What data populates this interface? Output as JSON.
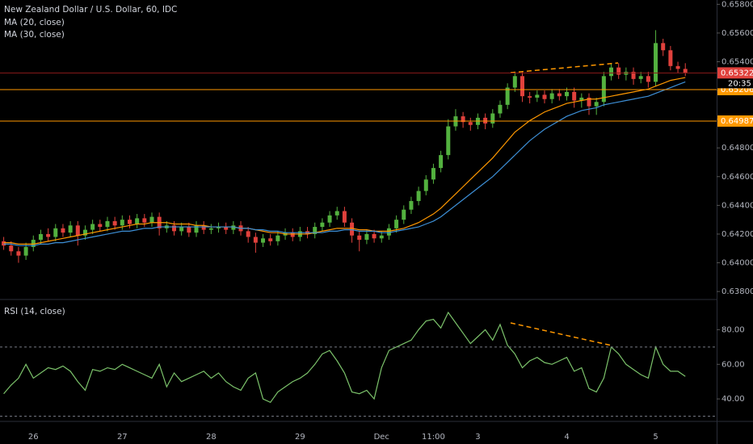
{
  "chart_data": [
    {
      "type": "candlestick",
      "title": "New Zealand Dollar / U.S. Dollar, 60, IDC",
      "categories": [
        null,
        null,
        null,
        null,
        "26",
        null,
        null,
        null,
        null,
        null,
        null,
        null,
        null,
        null,
        null,
        null,
        "27",
        null,
        null,
        null,
        null,
        null,
        null,
        null,
        null,
        null,
        null,
        null,
        "28",
        null,
        null,
        null,
        null,
        null,
        null,
        null,
        null,
        null,
        null,
        null,
        "29",
        null,
        null,
        null,
        null,
        null,
        null,
        null,
        null,
        null,
        null,
        "Dec",
        null,
        null,
        null,
        null,
        null,
        null,
        "11:00",
        null,
        null,
        null,
        null,
        null,
        "3",
        null,
        null,
        null,
        null,
        null,
        null,
        null,
        null,
        null,
        null,
        null,
        "4",
        null,
        null,
        null,
        null,
        null,
        null,
        null,
        null,
        null,
        null,
        null,
        "5",
        null,
        null,
        null,
        null
      ],
      "open": [
        0.6415,
        0.6412,
        0.6408,
        0.6405,
        0.6411,
        0.6416,
        0.642,
        0.6418,
        0.6424,
        0.6421,
        0.6426,
        0.6419,
        0.6423,
        0.6427,
        0.6425,
        0.6429,
        0.6426,
        0.643,
        0.6427,
        0.6431,
        0.6428,
        0.6432,
        0.6424,
        0.6426,
        0.6422,
        0.6425,
        0.6421,
        0.6426,
        0.6423,
        0.6424,
        0.6425,
        0.6423,
        0.6426,
        0.6422,
        0.6418,
        0.6414,
        0.6417,
        0.6415,
        0.6419,
        0.6421,
        0.6418,
        0.6422,
        0.642,
        0.6425,
        0.6428,
        0.6433,
        0.6436,
        0.6428,
        0.6419,
        0.6416,
        0.642,
        0.6417,
        0.6419,
        0.6424,
        0.643,
        0.6437,
        0.6443,
        0.645,
        0.6458,
        0.6466,
        0.6475,
        0.6495,
        0.6502,
        0.6498,
        0.6496,
        0.6501,
        0.6497,
        0.6504,
        0.651,
        0.6522,
        0.653,
        0.6516,
        0.6515,
        0.6517,
        0.6514,
        0.6518,
        0.6516,
        0.6519,
        0.6513,
        0.6515,
        0.6509,
        0.6512,
        0.653,
        0.6536,
        0.6531,
        0.6533,
        0.6528,
        0.653,
        0.6526,
        0.6553,
        0.6548,
        0.6537,
        0.6535
      ],
      "high": [
        0.6418,
        0.6415,
        0.6411,
        0.6414,
        0.6419,
        0.6423,
        0.6424,
        0.6427,
        0.6427,
        0.6429,
        0.6429,
        0.6426,
        0.643,
        0.643,
        0.6432,
        0.6432,
        0.6433,
        0.6433,
        0.6434,
        0.6434,
        0.6435,
        0.6435,
        0.6429,
        0.6429,
        0.6428,
        0.6428,
        0.6429,
        0.6429,
        0.6427,
        0.6428,
        0.6428,
        0.6429,
        0.6429,
        0.6425,
        0.6421,
        0.642,
        0.642,
        0.6422,
        0.6424,
        0.6424,
        0.6425,
        0.6425,
        0.6428,
        0.6431,
        0.6436,
        0.6439,
        0.6439,
        0.6431,
        0.6422,
        0.6423,
        0.6423,
        0.6422,
        0.6427,
        0.6433,
        0.644,
        0.6446,
        0.6453,
        0.6461,
        0.6469,
        0.6478,
        0.65,
        0.6507,
        0.6505,
        0.6501,
        0.6504,
        0.6504,
        0.6507,
        0.6513,
        0.6525,
        0.6533,
        0.6533,
        0.6519,
        0.652,
        0.652,
        0.6521,
        0.6521,
        0.6522,
        0.6522,
        0.6518,
        0.6518,
        0.6515,
        0.6533,
        0.6539,
        0.6539,
        0.6536,
        0.6536,
        0.6533,
        0.6533,
        0.6562,
        0.6556,
        0.6551,
        0.654,
        0.6539
      ],
      "low": [
        0.6409,
        0.6405,
        0.64,
        0.6402,
        0.6408,
        0.6413,
        0.6415,
        0.6415,
        0.6418,
        0.6418,
        0.6412,
        0.6416,
        0.642,
        0.6422,
        0.6422,
        0.6423,
        0.6423,
        0.6424,
        0.6424,
        0.6425,
        0.6425,
        0.6419,
        0.6421,
        0.6419,
        0.6419,
        0.6418,
        0.6418,
        0.642,
        0.642,
        0.6421,
        0.642,
        0.642,
        0.6419,
        0.6414,
        0.6407,
        0.6411,
        0.6412,
        0.6412,
        0.6416,
        0.6415,
        0.6415,
        0.6417,
        0.6417,
        0.6422,
        0.6425,
        0.643,
        0.6425,
        0.6414,
        0.6408,
        0.6413,
        0.6414,
        0.6414,
        0.6416,
        0.6421,
        0.6427,
        0.6434,
        0.644,
        0.6447,
        0.6455,
        0.6463,
        0.6472,
        0.6492,
        0.6494,
        0.6492,
        0.6493,
        0.6493,
        0.6494,
        0.6501,
        0.6507,
        0.6519,
        0.6512,
        0.6511,
        0.6512,
        0.6511,
        0.6511,
        0.6513,
        0.6513,
        0.6508,
        0.6508,
        0.6503,
        0.6503,
        0.6509,
        0.6527,
        0.6528,
        0.6527,
        0.6524,
        0.6525,
        0.6522,
        0.6523,
        0.6544,
        0.6534,
        0.6532,
        0.653
      ],
      "close": [
        0.6412,
        0.6408,
        0.6405,
        0.6411,
        0.6416,
        0.642,
        0.6418,
        0.6424,
        0.6421,
        0.6426,
        0.6419,
        0.6423,
        0.6427,
        0.6425,
        0.6429,
        0.6426,
        0.643,
        0.6427,
        0.6431,
        0.6428,
        0.6432,
        0.6424,
        0.6426,
        0.6422,
        0.6425,
        0.6421,
        0.6426,
        0.6423,
        0.6424,
        0.6425,
        0.6423,
        0.6426,
        0.6422,
        0.6418,
        0.6414,
        0.6417,
        0.6415,
        0.6419,
        0.6421,
        0.6418,
        0.6422,
        0.642,
        0.6425,
        0.6428,
        0.6433,
        0.6436,
        0.6428,
        0.6419,
        0.6416,
        0.642,
        0.6417,
        0.6419,
        0.6424,
        0.643,
        0.6437,
        0.6443,
        0.645,
        0.6458,
        0.6466,
        0.6475,
        0.6495,
        0.6502,
        0.6498,
        0.6496,
        0.6501,
        0.6497,
        0.6504,
        0.651,
        0.6522,
        0.653,
        0.6516,
        0.6515,
        0.6517,
        0.6514,
        0.6518,
        0.6516,
        0.6519,
        0.6513,
        0.6515,
        0.6509,
        0.6512,
        0.653,
        0.6536,
        0.6531,
        0.6533,
        0.6528,
        0.653,
        0.6526,
        0.6553,
        0.6548,
        0.6537,
        0.6535,
        0.65322
      ],
      "up_color": "#53b13f",
      "down_color": "#e0413c",
      "series": [
        {
          "name": "MA (20, close)",
          "color": "#ff9800",
          "values": [
            0.6414,
            0.6414,
            0.6413,
            0.6413,
            0.6413,
            0.6414,
            0.6415,
            0.6416,
            0.6417,
            0.6418,
            0.6419,
            0.642,
            0.6421,
            0.6422,
            0.6423,
            0.6424,
            0.6425,
            0.6426,
            0.6427,
            0.6427,
            0.6428,
            0.6428,
            0.6428,
            0.6427,
            0.6427,
            0.6427,
            0.6426,
            0.6426,
            0.6425,
            0.6425,
            0.6425,
            0.6425,
            0.6424,
            0.6424,
            0.6423,
            0.6422,
            0.6421,
            0.6421,
            0.642,
            0.642,
            0.642,
            0.642,
            0.6421,
            0.6422,
            0.6423,
            0.6424,
            0.6424,
            0.6424,
            0.6423,
            0.6423,
            0.6422,
            0.6422,
            0.6422,
            0.6423,
            0.6424,
            0.6426,
            0.6428,
            0.6431,
            0.6434,
            0.6438,
            0.6443,
            0.6448,
            0.6453,
            0.6458,
            0.6463,
            0.6468,
            0.6473,
            0.6479,
            0.6485,
            0.6491,
            0.6495,
            0.6499,
            0.6502,
            0.6505,
            0.6507,
            0.6509,
            0.6511,
            0.6512,
            0.6513,
            0.6514,
            0.6514,
            0.6515,
            0.6516,
            0.6517,
            0.6518,
            0.6519,
            0.652,
            0.6521,
            0.6523,
            0.6525,
            0.6527,
            0.6528,
            0.6529
          ]
        },
        {
          "name": "MA (30, close)",
          "color": "#3d8fd6",
          "values": [
            0.6413,
            0.6413,
            0.6412,
            0.6412,
            0.6412,
            0.6413,
            0.6413,
            0.6414,
            0.6414,
            0.6415,
            0.6416,
            0.6417,
            0.6418,
            0.6419,
            0.642,
            0.6421,
            0.6422,
            0.6422,
            0.6423,
            0.6424,
            0.6424,
            0.6425,
            0.6425,
            0.6425,
            0.6425,
            0.6425,
            0.6425,
            0.6425,
            0.6425,
            0.6425,
            0.6425,
            0.6425,
            0.6424,
            0.6424,
            0.6423,
            0.6423,
            0.6422,
            0.6422,
            0.6421,
            0.6421,
            0.6421,
            0.6421,
            0.6421,
            0.6421,
            0.6422,
            0.6422,
            0.6423,
            0.6423,
            0.6422,
            0.6422,
            0.6422,
            0.6421,
            0.6421,
            0.6422,
            0.6423,
            0.6424,
            0.6425,
            0.6427,
            0.6429,
            0.6432,
            0.6436,
            0.644,
            0.6444,
            0.6448,
            0.6452,
            0.6456,
            0.646,
            0.6465,
            0.647,
            0.6475,
            0.648,
            0.6485,
            0.6489,
            0.6493,
            0.6496,
            0.6499,
            0.6502,
            0.6504,
            0.6506,
            0.6507,
            0.6508,
            0.651,
            0.6511,
            0.6512,
            0.6513,
            0.6514,
            0.6515,
            0.6516,
            0.6518,
            0.652,
            0.6522,
            0.6524,
            0.6526
          ]
        }
      ],
      "ylim": [
        0.6375,
        0.6583
      ],
      "yticks": [
        {
          "value": 0.638,
          "label": "0.63800"
        },
        {
          "value": 0.64,
          "label": "0.64000"
        },
        {
          "value": 0.642,
          "label": "0.64200"
        },
        {
          "value": 0.644,
          "label": "0.64400"
        },
        {
          "value": 0.646,
          "label": "0.64600"
        },
        {
          "value": 0.648,
          "label": "0.64800"
        },
        {
          "value": 0.65,
          "label": "0.65000"
        },
        {
          "value": 0.652,
          "label": "0.65200"
        },
        {
          "value": 0.654,
          "label": "0.65400"
        },
        {
          "value": 0.656,
          "label": "0.65600"
        },
        {
          "value": 0.658,
          "label": "0.65800"
        }
      ],
      "levels": [
        {
          "value": 0.65206,
          "color": "#ff9800"
        },
        {
          "value": 0.64987,
          "color": "#ff9800"
        }
      ],
      "last_price": {
        "value": 0.65322,
        "countdown": "20:35",
        "color": "#e0413c"
      }
    },
    {
      "type": "line",
      "title": "RSI (14, close)",
      "color": "#7cc36b",
      "values": [
        43,
        48,
        52,
        60,
        52,
        55,
        58,
        57,
        59,
        56,
        50,
        45,
        57,
        56,
        58,
        57,
        60,
        58,
        56,
        54,
        52,
        60,
        47,
        55,
        50,
        52,
        54,
        56,
        52,
        55,
        50,
        47,
        45,
        52,
        55,
        40,
        38,
        44,
        47,
        50,
        52,
        55,
        60,
        66,
        68,
        62,
        55,
        44,
        43,
        45,
        40,
        58,
        68,
        70,
        72,
        74,
        80,
        85,
        86,
        81,
        90,
        84,
        78,
        72,
        76,
        80,
        74,
        83,
        71,
        66,
        58,
        62,
        64,
        61,
        60,
        62,
        64,
        56,
        58,
        46,
        44,
        52,
        70,
        66,
        60,
        57,
        54,
        52,
        70,
        60,
        56,
        56,
        53
      ],
      "ylim": [
        27,
        97
      ],
      "yticks": [
        {
          "value": 40,
          "label": "40.00"
        },
        {
          "value": 60,
          "label": "60.00"
        },
        {
          "value": 80,
          "label": "80.00"
        }
      ],
      "levels": [
        70,
        30
      ]
    }
  ]
}
